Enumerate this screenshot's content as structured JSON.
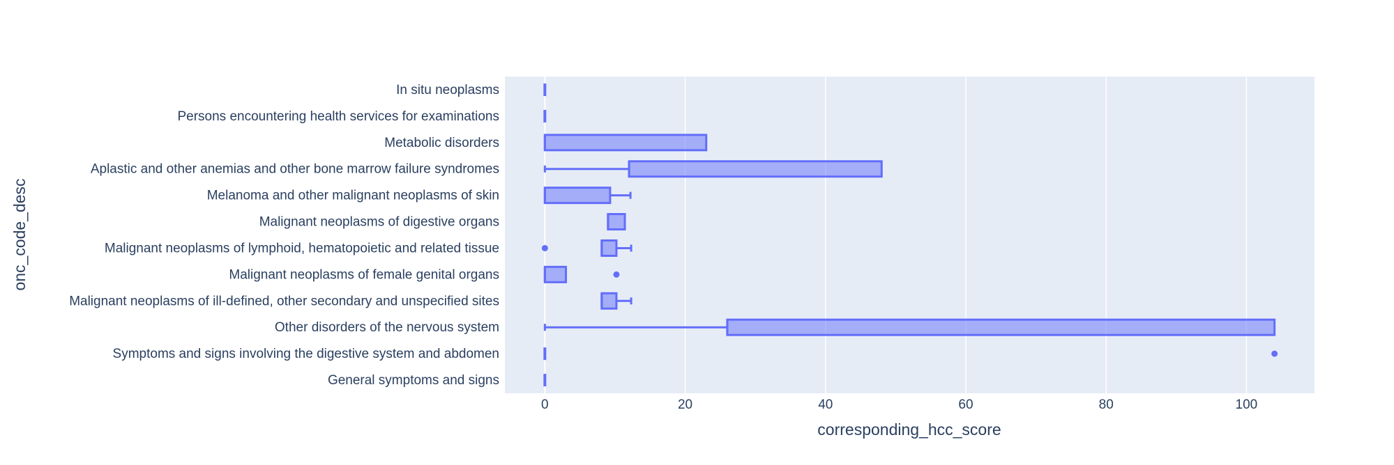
{
  "chart_data": {
    "type": "box",
    "orientation": "horizontal",
    "title": "",
    "xlabel": "corresponding_hcc_score",
    "ylabel": "onc_code_desc",
    "xlim": [
      -5.7,
      109.7
    ],
    "x_ticks": [
      0,
      20,
      40,
      60,
      80,
      100
    ],
    "grid": true,
    "legend": "none",
    "rows": [
      {
        "label": "In situ neoplasms",
        "min": 0,
        "q1": 0,
        "median": 0,
        "q3": 0,
        "max": 0,
        "outliers": []
      },
      {
        "label": "Persons encountering health services for examinations",
        "min": 0,
        "q1": 0,
        "median": 0,
        "q3": 0,
        "max": 0,
        "outliers": []
      },
      {
        "label": "Metabolic disorders",
        "min": 0,
        "q1": 0,
        "median": 0,
        "q3": 23,
        "max": 23,
        "outliers": []
      },
      {
        "label": "Aplastic and other anemias and other bone marrow failure syndromes",
        "min": 0,
        "q1": 12,
        "median": 12,
        "q3": 48,
        "max": 48,
        "outliers": []
      },
      {
        "label": "Melanoma and other malignant neoplasms of skin",
        "min": 0,
        "q1": 0,
        "median": 0,
        "q3": 9.3,
        "max": 12.2,
        "outliers": []
      },
      {
        "label": "Malignant neoplasms of digestive organs",
        "min": 9,
        "q1": 9,
        "median": 9,
        "q3": 11.4,
        "max": 11.4,
        "outliers": []
      },
      {
        "label": "Malignant neoplasms of lymphoid, hematopoietic and related tissue",
        "min": 8.1,
        "q1": 8.1,
        "median": 8.1,
        "q3": 10.2,
        "max": 12.3,
        "outliers": [
          0
        ]
      },
      {
        "label": "Malignant neoplasms of female genital organs",
        "min": 0,
        "q1": 0,
        "median": 0,
        "q3": 3,
        "max": 3,
        "outliers": [
          10.2
        ]
      },
      {
        "label": "Malignant neoplasms of ill-defined, other secondary and unspecified sites",
        "min": 8.1,
        "q1": 8.1,
        "median": 8.1,
        "q3": 10.2,
        "max": 12.3,
        "outliers": []
      },
      {
        "label": "Other disorders of the nervous system",
        "min": 0,
        "q1": 26,
        "median": 26,
        "q3": 104,
        "max": 104,
        "outliers": []
      },
      {
        "label": "Symptoms and signs involving the digestive system and abdomen",
        "min": 0,
        "q1": 0,
        "median": 0,
        "q3": 0,
        "max": 0,
        "outliers": [
          104
        ]
      },
      {
        "label": "General symptoms and signs",
        "min": 0,
        "q1": 0,
        "median": 0,
        "q3": 0,
        "max": 0,
        "outliers": []
      }
    ],
    "colors": {
      "box_line": "#636efa",
      "box_fill": "rgba(99,110,250,0.5)",
      "plot_bg": "#e5ecf6",
      "grid": "#ffffff",
      "text": "#2a3f5f",
      "page_bg": "#ffffff"
    }
  }
}
